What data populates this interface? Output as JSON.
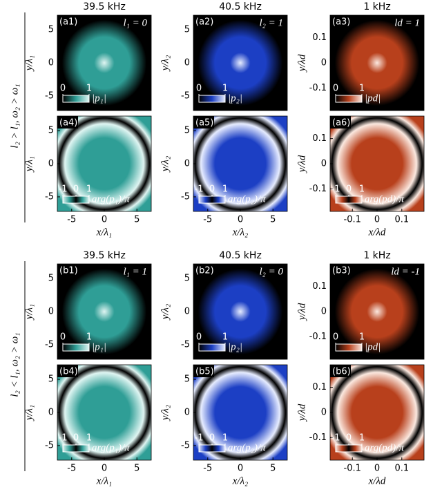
{
  "group_labels": [
    "l₂ > l₁, ω₂ > ω₁",
    "l₂ < l₁, ω₂ > ω₁"
  ],
  "chart_data": [
    {
      "type": "heatmap",
      "title": "39.5 kHz",
      "label": "(a1)",
      "annotation": "l₁ = 0",
      "ylabel": "y/λ₁",
      "xlim": [
        -7.2,
        7.2
      ],
      "ylim": [
        -7.2,
        7.2
      ],
      "yticks": [
        -5,
        0,
        5
      ],
      "colormap": [
        "#000000",
        "#2f9e96",
        "#dff5f2"
      ],
      "colorbar": {
        "ticks": [
          0,
          1
        ],
        "label": "|p₁|"
      }
    },
    {
      "type": "heatmap",
      "title": "40.5 kHz",
      "label": "(a2)",
      "annotation": "l₂ = 1",
      "ylabel": "y/λ₂",
      "xlim": [
        -7.2,
        7.2
      ],
      "ylim": [
        -7.2,
        7.2
      ],
      "yticks": [
        -5,
        0,
        5
      ],
      "colormap": [
        "#000000",
        "#1c3fc4",
        "#e6ecff"
      ],
      "colorbar": {
        "ticks": [
          0,
          1
        ],
        "label": "|p₂|"
      }
    },
    {
      "type": "heatmap",
      "title": "1 kHz",
      "label": "(a3)",
      "annotation": "ld = 1",
      "ylabel": "y/λd",
      "xlim": [
        -0.19,
        0.19
      ],
      "ylim": [
        -0.19,
        0.19
      ],
      "yticks": [
        -0.1,
        0,
        0.1
      ],
      "colormap": [
        "#000000",
        "#b8401c",
        "#fbe8df"
      ],
      "colorbar": {
        "ticks": [
          0,
          1
        ],
        "label": "|pd|"
      }
    },
    {
      "type": "heatmap",
      "label": "(a4)",
      "ylabel": "y/λ₁",
      "xlabel": "x/λ₁",
      "xlim": [
        -7.2,
        7.2
      ],
      "ylim": [
        -7.2,
        7.2
      ],
      "xticks": [
        -5,
        0,
        5
      ],
      "yticks": [
        -5,
        0,
        5
      ],
      "colormap": [
        "#000000",
        "#2f9e96",
        "#dff5f2"
      ],
      "colorbar": {
        "ticks": [
          -1,
          0,
          1
        ],
        "label": "arg(p₁)/π"
      }
    },
    {
      "type": "heatmap",
      "label": "(a5)",
      "ylabel": "y/λ₂",
      "xlabel": "x/λ₂",
      "xlim": [
        -7.2,
        7.2
      ],
      "ylim": [
        -7.2,
        7.2
      ],
      "xticks": [
        -5,
        0,
        5
      ],
      "yticks": [
        -5,
        0,
        5
      ],
      "colormap": [
        "#000000",
        "#1c3fc4",
        "#e6ecff"
      ],
      "colorbar": {
        "ticks": [
          -1,
          0,
          1
        ],
        "label": "arg(p₂)/π"
      }
    },
    {
      "type": "heatmap",
      "label": "(a6)",
      "ylabel": "y/λd",
      "xlabel": "x/λd",
      "xlim": [
        -0.19,
        0.19
      ],
      "ylim": [
        -0.19,
        0.19
      ],
      "xticks": [
        -0.1,
        0,
        0.1
      ],
      "yticks": [
        -0.1,
        0,
        0.1
      ],
      "colormap": [
        "#000000",
        "#b8401c",
        "#fbe8df"
      ],
      "colorbar": {
        "ticks": [
          -1,
          0,
          1
        ],
        "label": "arg(pd)/π"
      }
    },
    {
      "type": "heatmap",
      "title": "39.5 kHz",
      "label": "(b1)",
      "annotation": "l₁ = 1",
      "ylabel": "y/λ₁",
      "xlim": [
        -7.2,
        7.2
      ],
      "ylim": [
        -7.2,
        7.2
      ],
      "yticks": [
        -5,
        0,
        5
      ],
      "colormap": [
        "#000000",
        "#2f9e96",
        "#dff5f2"
      ],
      "colorbar": {
        "ticks": [
          0,
          1
        ],
        "label": "|p₁|"
      }
    },
    {
      "type": "heatmap",
      "title": "40.5 kHz",
      "label": "(b2)",
      "annotation": "l₂ = 0",
      "ylabel": "y/λ₂",
      "xlim": [
        -7.2,
        7.2
      ],
      "ylim": [
        -7.2,
        7.2
      ],
      "yticks": [
        -5,
        0,
        5
      ],
      "colormap": [
        "#000000",
        "#1c3fc4",
        "#e6ecff"
      ],
      "colorbar": {
        "ticks": [
          0,
          1
        ],
        "label": "|p₂|"
      }
    },
    {
      "type": "heatmap",
      "title": "1 kHz",
      "label": "(b3)",
      "annotation": "ld = -1",
      "ylabel": "y/λd",
      "xlim": [
        -0.19,
        0.19
      ],
      "ylim": [
        -0.19,
        0.19
      ],
      "yticks": [
        -0.1,
        0,
        0.1
      ],
      "colormap": [
        "#000000",
        "#b8401c",
        "#fbe8df"
      ],
      "colorbar": {
        "ticks": [
          0,
          1
        ],
        "label": "|pd|"
      }
    },
    {
      "type": "heatmap",
      "label": "(b4)",
      "ylabel": "y/λ₁",
      "xlabel": "x/λ₁",
      "xlim": [
        -7.2,
        7.2
      ],
      "ylim": [
        -7.2,
        7.2
      ],
      "xticks": [
        -5,
        0,
        5
      ],
      "yticks": [
        -5,
        0,
        5
      ],
      "colormap": [
        "#000000",
        "#2f9e96",
        "#dff5f2"
      ],
      "colorbar": {
        "ticks": [
          -1,
          0,
          1
        ],
        "label": "arg(p₁)/π"
      }
    },
    {
      "type": "heatmap",
      "label": "(b5)",
      "ylabel": "y/λ₂",
      "xlabel": "x/λ₂",
      "xlim": [
        -7.2,
        7.2
      ],
      "ylim": [
        -7.2,
        7.2
      ],
      "xticks": [
        -5,
        0,
        5
      ],
      "yticks": [
        -5,
        0,
        5
      ],
      "colormap": [
        "#000000",
        "#1c3fc4",
        "#e6ecff"
      ],
      "colorbar": {
        "ticks": [
          -1,
          0,
          1
        ],
        "label": "arg(p₂)/π"
      }
    },
    {
      "type": "heatmap",
      "label": "(b6)",
      "ylabel": "y/λd",
      "xlabel": "x/λd",
      "xlim": [
        -0.19,
        0.19
      ],
      "ylim": [
        -0.19,
        0.19
      ],
      "xticks": [
        -0.1,
        0,
        0.1
      ],
      "yticks": [
        -0.1,
        0,
        0.1
      ],
      "colormap": [
        "#000000",
        "#b8401c",
        "#fbe8df"
      ],
      "colorbar": {
        "ticks": [
          -1,
          0,
          1
        ],
        "label": "arg(pd)/π"
      }
    }
  ]
}
